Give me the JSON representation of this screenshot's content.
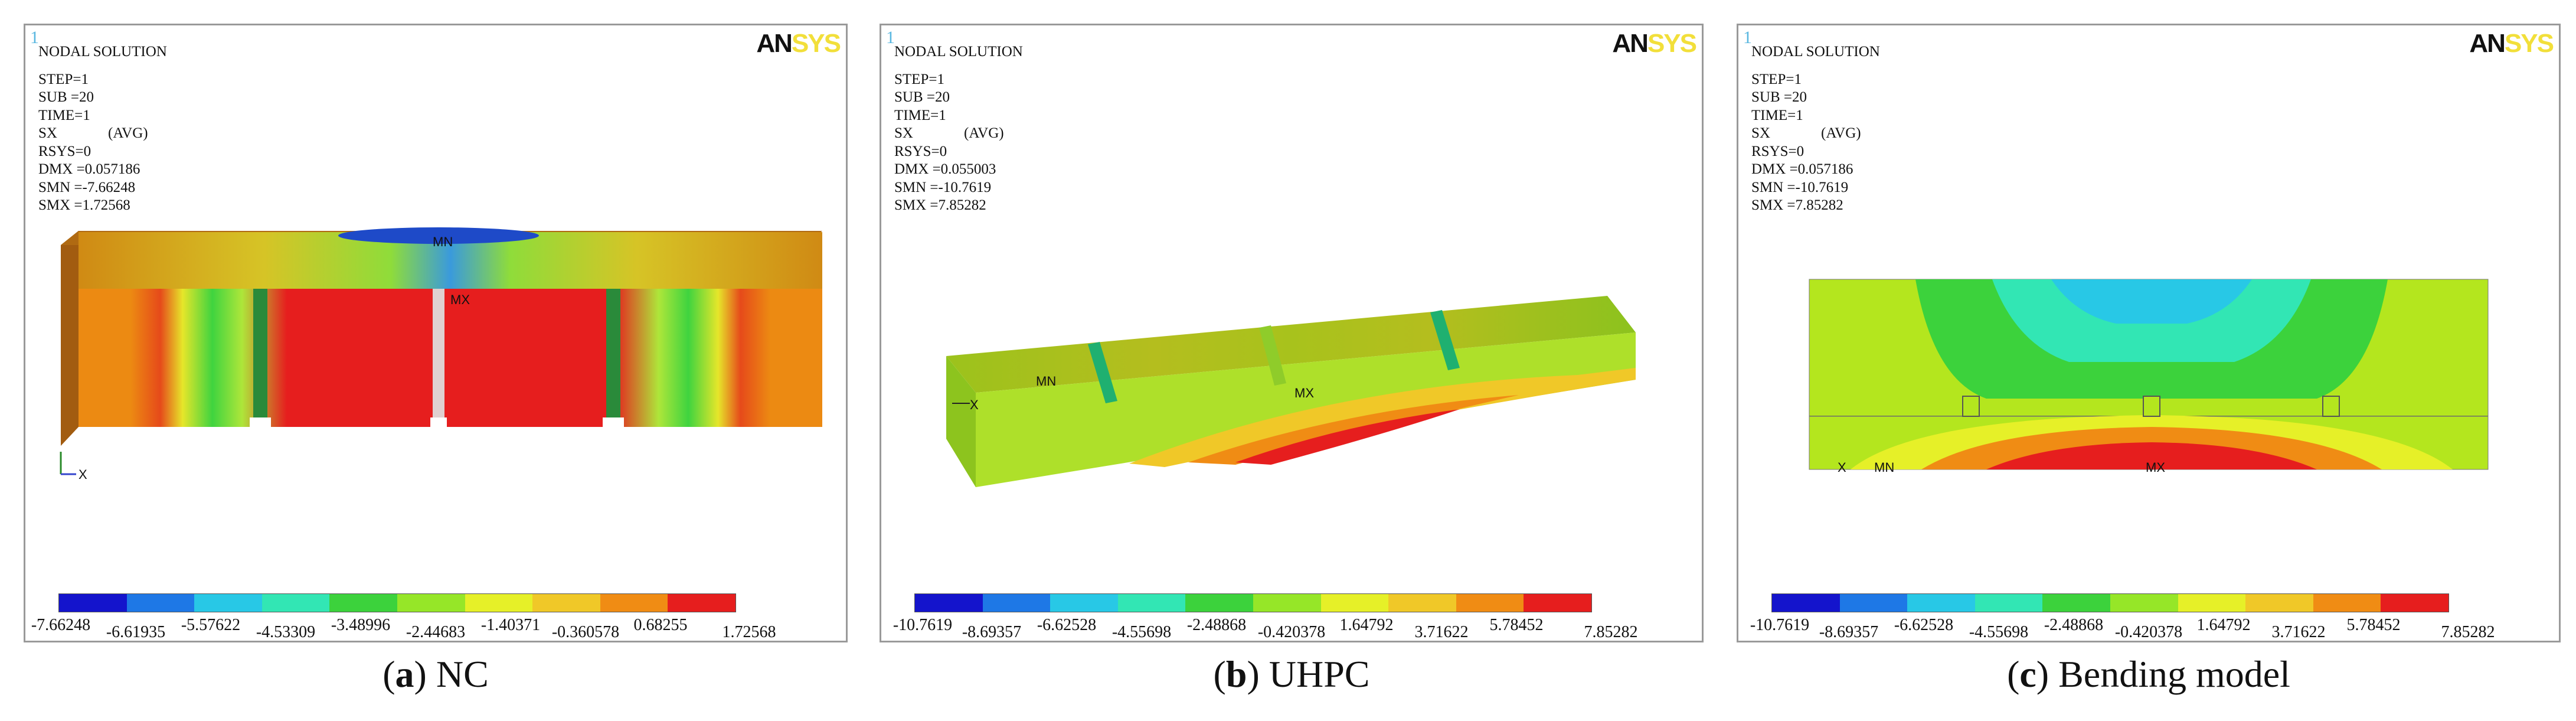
{
  "panels": [
    {
      "id": "a",
      "corner_number": "1",
      "logo": {
        "an": "AN",
        "sys": "SYS"
      },
      "header": "NODAL SOLUTION",
      "step": "STEP=1",
      "sub": "SUB =20",
      "time": "TIME=1",
      "sx": "SX",
      "avg": "(AVG)",
      "rsys": "RSYS=0",
      "dmx": "DMX =0.057186",
      "smn": "SMN =-7.66248",
      "smx": "SMX =1.72568",
      "mn_label": "MN",
      "mx_label": "MX",
      "axis_x": "X",
      "legend_values": [
        "-7.66248",
        "-6.61935",
        "-5.57622",
        "-4.53309",
        "-3.48996",
        "-2.44683",
        "-1.40371",
        "-0.360578",
        "0.68255",
        "1.72568"
      ],
      "caption_letter": "a",
      "caption_text": "NC"
    },
    {
      "id": "b",
      "corner_number": "1",
      "logo": {
        "an": "AN",
        "sys": "SYS"
      },
      "header": "NODAL SOLUTION",
      "step": "STEP=1",
      "sub": "SUB =20",
      "time": "TIME=1",
      "sx": "SX",
      "avg": "(AVG)",
      "rsys": "RSYS=0",
      "dmx": "DMX =0.055003",
      "smn": "SMN =-10.7619",
      "smx": "SMX =7.85282",
      "mn_label": "MN",
      "mx_label": "MX",
      "axis_x": "X",
      "legend_values": [
        "-10.7619",
        "-8.69357",
        "-6.62528",
        "-4.55698",
        "-2.48868",
        "-0.420378",
        "1.64792",
        "3.71622",
        "5.78452",
        "7.85282"
      ],
      "caption_letter": "b",
      "caption_text": "UHPC"
    },
    {
      "id": "c",
      "corner_number": "1",
      "logo": {
        "an": "AN",
        "sys": "SYS"
      },
      "header": "NODAL SOLUTION",
      "step": "STEP=1",
      "sub": "SUB =20",
      "time": "TIME=1",
      "sx": "SX",
      "avg": "(AVG)",
      "rsys": "RSYS=0",
      "dmx": "DMX =0.057186",
      "smn": "SMN =-10.7619",
      "smx": "SMX =7.85282",
      "mn_label": "MN",
      "mx_label": "MX",
      "axis_x": "X",
      "legend_values": [
        "-10.7619",
        "-8.69357",
        "-6.62528",
        "-4.55698",
        "-2.48868",
        "-0.420378",
        "1.64792",
        "3.71622",
        "5.78452",
        "7.85282"
      ],
      "caption_letter": "c",
      "caption_text": "Bending model"
    }
  ],
  "legend_colors": [
    "#1414cc",
    "#1e78e6",
    "#28c8e6",
    "#32e6b4",
    "#3cd23c",
    "#96e628",
    "#e6f028",
    "#f0c828",
    "#f08c14",
    "#e61e1e"
  ]
}
